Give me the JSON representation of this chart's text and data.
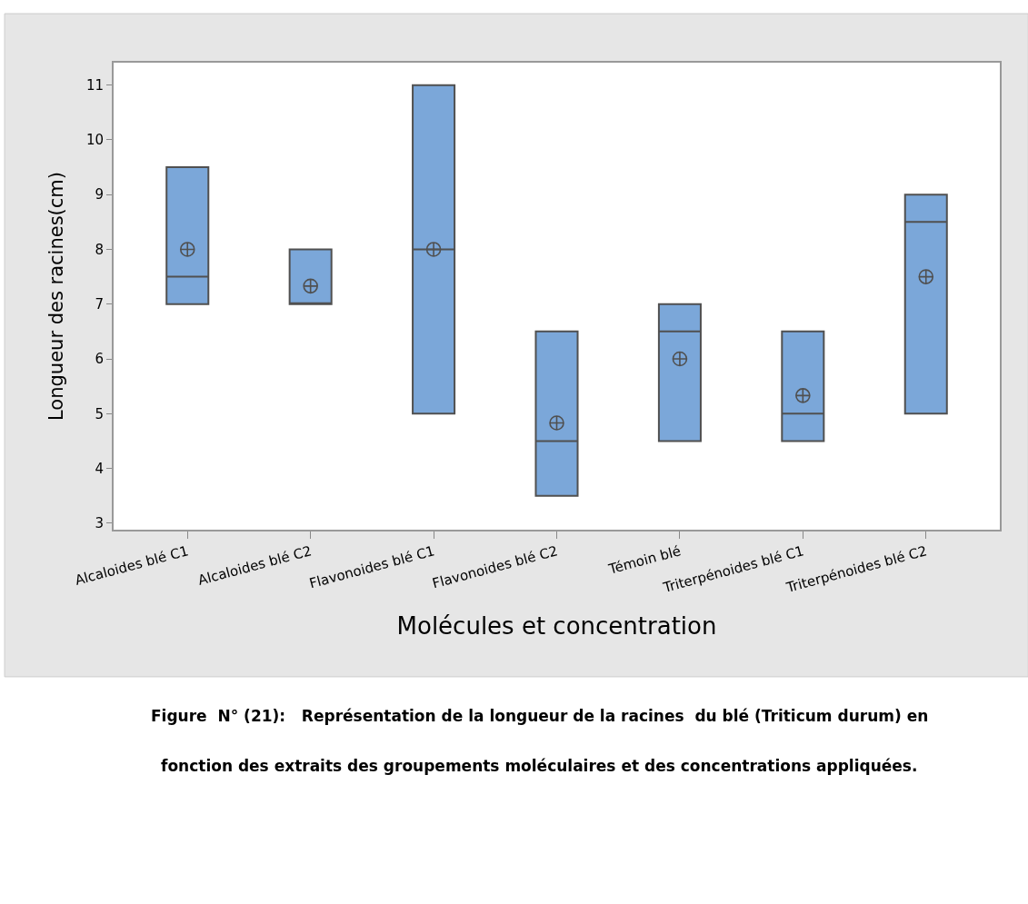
{
  "chart_data": {
    "type": "box",
    "xlabel": "Molécules et concentration",
    "ylabel": "Longueur des racines(cm)",
    "categories": [
      "Alcaloides blé C1",
      "Alcaloides blé C2",
      "Flavonoides blé C1",
      "Flavonoides blé C2",
      "Témoin blé",
      "Triterpénoides blé C1",
      "Triterpénoides blé C2"
    ],
    "color": "#7ba7d9",
    "boxes": [
      {
        "low": 7,
        "q1": 7,
        "median": 7.5,
        "q3": 9.5,
        "high": 9.5,
        "mean": 8
      },
      {
        "low": 7,
        "q1": 7,
        "median": 7,
        "q3": 8,
        "high": 8,
        "mean": 7.33
      },
      {
        "low": 5,
        "q1": 5,
        "median": 8,
        "q3": 11,
        "high": 11,
        "mean": 8
      },
      {
        "low": 3.5,
        "q1": 3.5,
        "median": 4.5,
        "q3": 6.5,
        "high": 6.5,
        "mean": 4.83
      },
      {
        "low": 4.5,
        "q1": 4.5,
        "median": 6.5,
        "q3": 7,
        "high": 7,
        "mean": 6
      },
      {
        "low": 4.5,
        "q1": 4.5,
        "median": 5,
        "q3": 6.5,
        "high": 6.5,
        "mean": 5.33
      },
      {
        "low": 5,
        "q1": 5,
        "median": 8.5,
        "q3": 9,
        "high": 9,
        "mean": 7.5
      }
    ],
    "ylim": [
      2.88,
      11.41
    ],
    "yticks": [
      3,
      4,
      5,
      6,
      7,
      8,
      9,
      10,
      11
    ],
    "marker": "circle",
    "annotations": [
      "Figure  N° (21):   Représentation de la longueur de la racines  du blé (Triticum durum) en",
      "fonction des extraits des groupements moléculaires et des concentrations appliquées."
    ]
  }
}
